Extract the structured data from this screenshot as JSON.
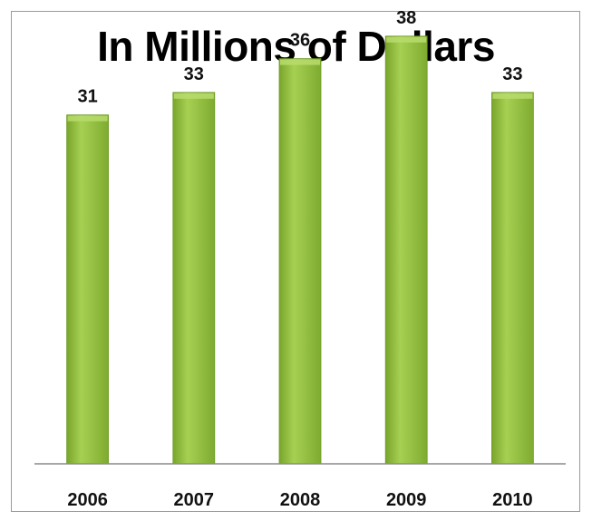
{
  "chart_data": {
    "type": "bar",
    "title": "In Millions of Dollars",
    "categories": [
      "2006",
      "2007",
      "2008",
      "2009",
      "2010"
    ],
    "values": [
      31,
      33,
      36,
      38,
      33
    ],
    "ylim": [
      0,
      40
    ],
    "grid": false,
    "legend": "none",
    "data_labels": true,
    "colors": {
      "bar": "#8cb83a",
      "bar_light": "#b8dc6c",
      "bar_dark": "#6e9a27",
      "axis": "#8a8a8a"
    }
  }
}
